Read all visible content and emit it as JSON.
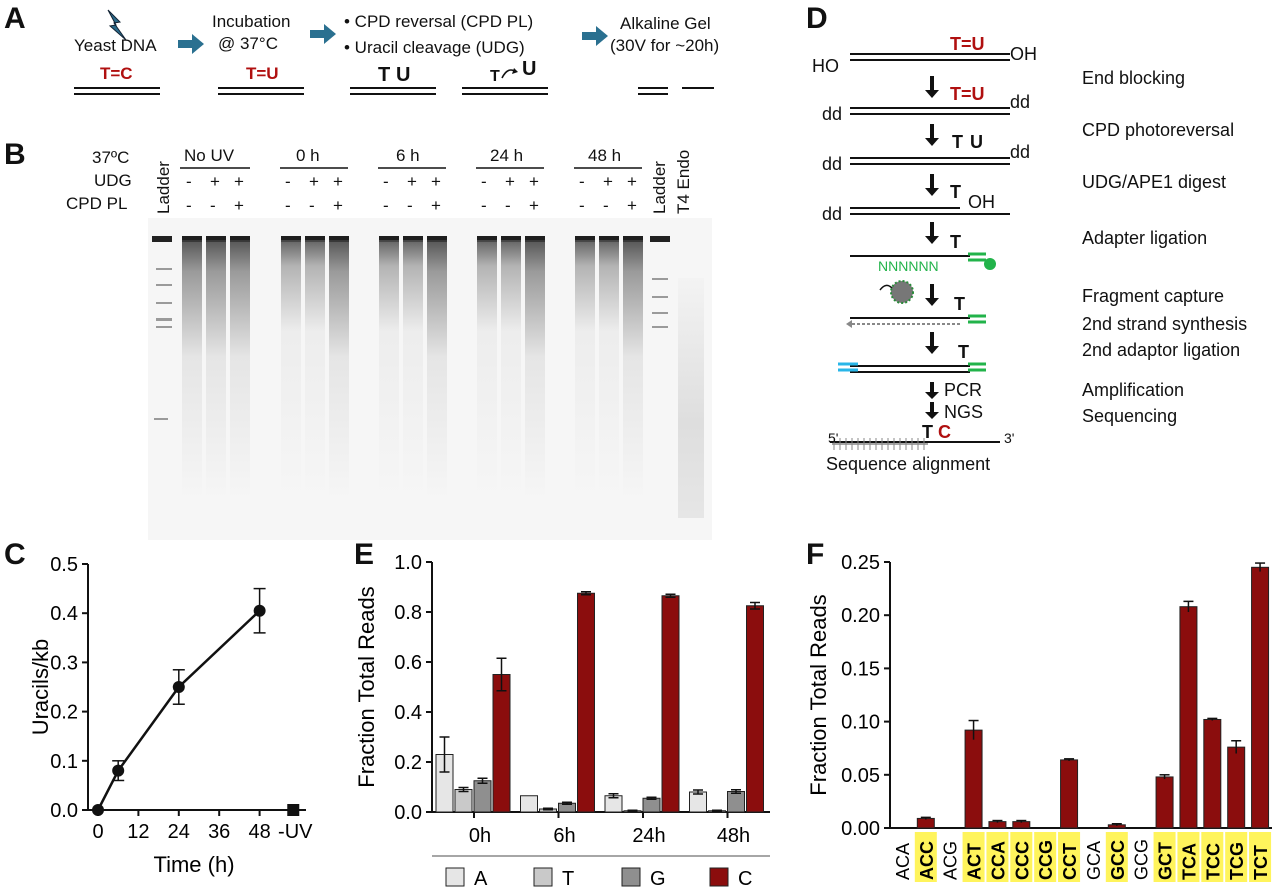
{
  "panels": {
    "A": "A",
    "B": "B",
    "C": "C",
    "D": "D",
    "E": "E",
    "F": "F"
  },
  "panelA": {
    "yeast": "Yeast DNA",
    "incubation": "Incubation",
    "incubation_temp": "@ 37°C",
    "bullet1": "• CPD reversal (CPD PL)",
    "bullet2": "• Uracil cleavage (UDG)",
    "alk1": "Alkaline Gel",
    "alk2": "(30V for ~20h)",
    "tc": "T=C",
    "tu": "T=U",
    "t1": "T",
    "u1": "U",
    "t2": "T",
    "u2": "U"
  },
  "panelB": {
    "row_temp": "37ºC",
    "row_udg": "UDG",
    "row_cpd": "CPD PL",
    "ladder": "Ladder",
    "t4": "T4 Endo",
    "groups": [
      "No UV",
      "0 h",
      "6 h",
      "24 h",
      "48 h"
    ],
    "udg_signs": [
      "-",
      "+",
      "+"
    ],
    "cpd_signs": [
      "-",
      "-",
      "+"
    ]
  },
  "panelD": {
    "ho": "HO",
    "oh": "OH",
    "tu": "T=U",
    "dd": "dd",
    "t": "T",
    "u": "U",
    "n6": "NNNNNN",
    "pcr": "PCR",
    "ngs": "NGS",
    "five": "5'",
    "three": "3'",
    "c": "C",
    "seq": "Sequence alignment",
    "steps": [
      "End blocking",
      "CPD photoreversal",
      "UDG/APE1 digest",
      "Adapter ligation",
      "Fragment capture",
      "2nd strand synthesis",
      "2nd adaptor ligation",
      "Amplification",
      "Sequencing"
    ]
  },
  "colors": {
    "darkred": "#8b0d0d",
    "light": "#e6e6e6",
    "mid": "#c9c9c9",
    "dark": "#8f8f8f",
    "green": "#22b34a",
    "cyan": "#29b6e8",
    "yellow": "#fff45c"
  },
  "chart_data": [
    {
      "type": "line",
      "ylabel": "Uracils/kb",
      "xlabel": "Time (h)",
      "x": [
        0,
        6,
        24,
        48
      ],
      "y": [
        0,
        0.08,
        0.25,
        0.405
      ],
      "err": [
        0,
        0.02,
        0.035,
        0.045
      ],
      "neg_uv": {
        "label": "-UV",
        "value": 0
      },
      "xticks": [
        "0",
        "12",
        "24",
        "36",
        "48"
      ],
      "yticks": [
        "0.0",
        "0.1",
        "0.2",
        "0.3",
        "0.4",
        "0.5"
      ],
      "ylim": [
        0,
        0.5
      ]
    },
    {
      "type": "bar",
      "ylabel": "Fraction Total Reads",
      "categories": [
        "0h",
        "6h",
        "24h",
        "48h"
      ],
      "yticks": [
        "0.0",
        "0.2",
        "0.4",
        "0.6",
        "0.8",
        "1.0"
      ],
      "ylim": [
        0,
        1.0
      ],
      "series": [
        {
          "name": "A",
          "values": [
            0.23,
            0.065,
            0.065,
            0.08
          ],
          "err": [
            0.07,
            0,
            0.008,
            0.008
          ]
        },
        {
          "name": "T",
          "values": [
            0.09,
            0.012,
            0.005,
            0.005
          ],
          "err": [
            0.008,
            0.003,
            0.002,
            0.002
          ]
        },
        {
          "name": "G",
          "values": [
            0.125,
            0.035,
            0.055,
            0.082
          ],
          "err": [
            0.01,
            0.004,
            0.004,
            0.007
          ]
        },
        {
          "name": "C",
          "values": [
            0.55,
            0.875,
            0.865,
            0.825
          ],
          "err": [
            0.065,
            0.006,
            0.006,
            0.013
          ]
        }
      ]
    },
    {
      "type": "bar",
      "ylabel": "Fraction Total Reads",
      "categories": [
        "ACA",
        "ACC",
        "ACG",
        "ACT",
        "CCA",
        "CCC",
        "CCG",
        "CCT",
        "GCA",
        "GCC",
        "GCG",
        "GCT",
        "TCA",
        "TCC",
        "TCG",
        "TCT"
      ],
      "highlighted": [
        false,
        true,
        false,
        true,
        true,
        true,
        true,
        true,
        false,
        true,
        false,
        true,
        true,
        true,
        true,
        true
      ],
      "values": [
        0,
        0.009,
        0,
        0.092,
        0.006,
        0.006,
        0,
        0.064,
        0,
        0.003,
        0,
        0.048,
        0.208,
        0.102,
        0.076,
        0.245
      ],
      "err": [
        0,
        0.001,
        0,
        0.009,
        0.001,
        0.001,
        0,
        0.001,
        0,
        0.001,
        0,
        0.002,
        0.005,
        0.001,
        0.006,
        0.004
      ],
      "yticks": [
        "0.00",
        "0.05",
        "0.10",
        "0.15",
        "0.20",
        "0.25"
      ],
      "ylim": [
        0,
        0.25
      ]
    }
  ]
}
